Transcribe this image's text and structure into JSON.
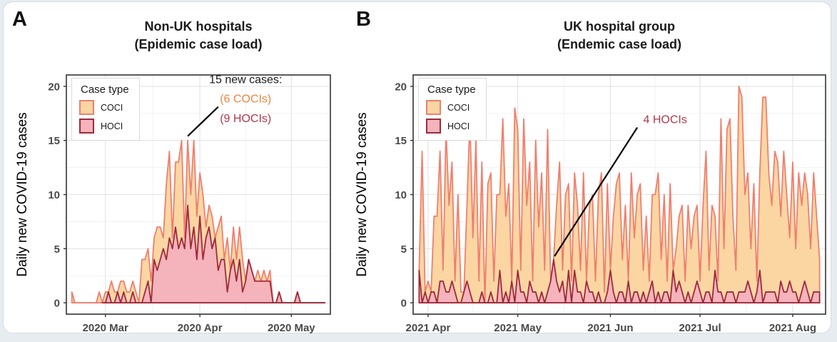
{
  "page": {
    "background": "#E7ECF1",
    "card_background": "#FFFFFF",
    "card_border": "#D5DBE1"
  },
  "figure": {
    "y_axis_label": "Daily new COVID-19 cases",
    "legend": {
      "title": "Case type",
      "items": [
        {
          "label": "COCI"
        },
        {
          "label": "HOCI"
        }
      ]
    },
    "colors": {
      "coci_fill": "#FBD6A3",
      "coci_line": "#EF7F6E",
      "hoci_fill": "#F5B3BC",
      "hoci_line": "#9E2A3A",
      "annotation_text_black": "#1A1A1A",
      "annotation_coci_text": "#E8873F",
      "annotation_hoci_text": "#AE3A4D",
      "grid_major": "#E3E3E3",
      "grid_minor": "#F1F1F1",
      "axis_text": "#4A4A4A",
      "frame": "#333333",
      "annotation_line": "#000000"
    }
  },
  "chart_data": [
    {
      "type": "area",
      "stacked": true,
      "panel_label": "A",
      "title_line1": "Non-UK hospitals",
      "title_line2": "(Epidemic case load)",
      "ylabel": "Daily new COVID-19 cases",
      "ylim": [
        0,
        20
      ],
      "yticks": [
        0,
        5,
        10,
        15,
        20
      ],
      "yticks_minor": [
        2.5,
        7.5,
        12.5,
        17.5
      ],
      "grid": true,
      "legend_position": "top-left",
      "x_ticks": [
        {
          "label": "2020 Mar",
          "day": 11
        },
        {
          "label": "2020 Apr",
          "day": 42
        },
        {
          "label": "2020 May",
          "day": 72
        }
      ],
      "series": [
        {
          "name": "COCI",
          "values": [
            1,
            0,
            0,
            0,
            0,
            0,
            0,
            0,
            0,
            1,
            0,
            1,
            0,
            2,
            1,
            0,
            2,
            1,
            1,
            1,
            1,
            1,
            0,
            4,
            3,
            3,
            2,
            2,
            4,
            3,
            1,
            7,
            8,
            1,
            6,
            8,
            9,
            1,
            6,
            5,
            8,
            4,
            4,
            6,
            1,
            2,
            3,
            0,
            4,
            4,
            0,
            5,
            0,
            3,
            2,
            3,
            3,
            0,
            0,
            0,
            0,
            1,
            0,
            1,
            0,
            1,
            0,
            0,
            0,
            0,
            0,
            0,
            0,
            0,
            0,
            0,
            0,
            0,
            0,
            0,
            0,
            0,
            0,
            0
          ]
        },
        {
          "name": "HOCI",
          "start": 10,
          "values": [
            0,
            0,
            0,
            0,
            0,
            0,
            0,
            0,
            0,
            0,
            0,
            0,
            1,
            0,
            0,
            1,
            0,
            1,
            0,
            0,
            1,
            0,
            0,
            0,
            1,
            2,
            0,
            4,
            3,
            4,
            5,
            4,
            6,
            5,
            7,
            5,
            6,
            5,
            9,
            5,
            7,
            4,
            8,
            4,
            6,
            7,
            5,
            6,
            3,
            4,
            4,
            1,
            3,
            4,
            2,
            4,
            1,
            2,
            4,
            3,
            2,
            2,
            2,
            2,
            2,
            2,
            0,
            0,
            1,
            0,
            0,
            0,
            0,
            0,
            1,
            0,
            0,
            0,
            0,
            0,
            0,
            0,
            0,
            0
          ]
        }
      ],
      "annotation": {
        "line": {
          "from": {
            "day": 38,
            "value": 15.4
          },
          "to": {
            "day": 48,
            "value": 18.1
          }
        },
        "texts": [
          {
            "text": "15 new cases:",
            "color": "#1A1A1A",
            "day": 57,
            "value": 20.3,
            "anchor": "middle"
          },
          {
            "text": "(6 COCIs)",
            "color": "#E8873F",
            "day": 57,
            "value": 18.5,
            "anchor": "middle"
          },
          {
            "text": "(9 HOCIs)",
            "color": "#AE3A4D",
            "day": 57,
            "value": 16.7,
            "anchor": "middle"
          }
        ]
      }
    },
    {
      "type": "area",
      "stacked": true,
      "panel_label": "B",
      "title_line1": "UK hospital group",
      "title_line2": "(Endemic case load)",
      "ylabel": "Daily new COVID-19 cases",
      "ylim": [
        0,
        20
      ],
      "yticks": [
        0,
        5,
        10,
        15,
        20
      ],
      "yticks_minor": [
        2.5,
        7.5,
        12.5,
        17.5
      ],
      "grid": true,
      "legend_position": "top-left",
      "x_ticks": [
        {
          "label": "2021 Apr",
          "day": 3
        },
        {
          "label": "2021 May",
          "day": 33
        },
        {
          "label": "2021 Jun",
          "day": 64
        },
        {
          "label": "2021 Jul",
          "day": 94
        },
        {
          "label": "2021 Aug",
          "day": 125
        }
      ],
      "series": [
        {
          "name": "COCI",
          "values": [
            0,
            14,
            0,
            2,
            0,
            7,
            8,
            12,
            1,
            15,
            8,
            11,
            1,
            10,
            1,
            0,
            7,
            16,
            6,
            15,
            2,
            12,
            0,
            11,
            11,
            2,
            10,
            7,
            17,
            7,
            11,
            0,
            18,
            13,
            2,
            16,
            9,
            11,
            1,
            14,
            7,
            11,
            3,
            15,
            0,
            0,
            7,
            12,
            1,
            10,
            8,
            2,
            9,
            8,
            2,
            12,
            0,
            8,
            9,
            2,
            9,
            12,
            1,
            10,
            0,
            7,
            11,
            11,
            3,
            9,
            0,
            12,
            5,
            9,
            11,
            2,
            8,
            1,
            8,
            10,
            11,
            4,
            9,
            1,
            11,
            0,
            4,
            6,
            8,
            2,
            8,
            5,
            7,
            7,
            1,
            9,
            13,
            2,
            9,
            5,
            1,
            16,
            5,
            15,
            16,
            7,
            3,
            19,
            18,
            9,
            10,
            4,
            11,
            1,
            9,
            19,
            18,
            11,
            8,
            13,
            13,
            6,
            13,
            9,
            4,
            12,
            4,
            12,
            8,
            10,
            9,
            5,
            11,
            7,
            3
          ]
        },
        {
          "name": "HOCI",
          "values": [
            3,
            0,
            1,
            0,
            1,
            1,
            0,
            2,
            2,
            1,
            1,
            2,
            1,
            0,
            0,
            1,
            2,
            1,
            0,
            0,
            0,
            1,
            0,
            0,
            1,
            0,
            0,
            3,
            0,
            1,
            0,
            2,
            0,
            3,
            1,
            1,
            0,
            2,
            1,
            1,
            0,
            1,
            0,
            1,
            2,
            4,
            2,
            1,
            2,
            0,
            3,
            0,
            3,
            1,
            1,
            0,
            2,
            1,
            1,
            0,
            1,
            0,
            0,
            1,
            3,
            1,
            0,
            1,
            1,
            0,
            2,
            0,
            1,
            1,
            0,
            1,
            0,
            1,
            2,
            0,
            1,
            0,
            1,
            1,
            0,
            3,
            1,
            2,
            1,
            0,
            1,
            0,
            1,
            2,
            1,
            0,
            1,
            1,
            0,
            3,
            1,
            1,
            0,
            1,
            1,
            1,
            0,
            1,
            1,
            1,
            2,
            1,
            0,
            1,
            3,
            0,
            1,
            1,
            1,
            1,
            0,
            2,
            1,
            1,
            2,
            1,
            1,
            0,
            1,
            2,
            1,
            0,
            1,
            1,
            1
          ]
        }
      ],
      "annotation": {
        "line": {
          "from": {
            "day": 45.3,
            "value": 4.3
          },
          "to": {
            "day": 73,
            "value": 16.2
          }
        },
        "texts": [
          {
            "text": "4 HOCIs",
            "color": "#AE3A4D",
            "day": 75,
            "value": 16.6,
            "anchor": "start"
          }
        ]
      }
    }
  ]
}
